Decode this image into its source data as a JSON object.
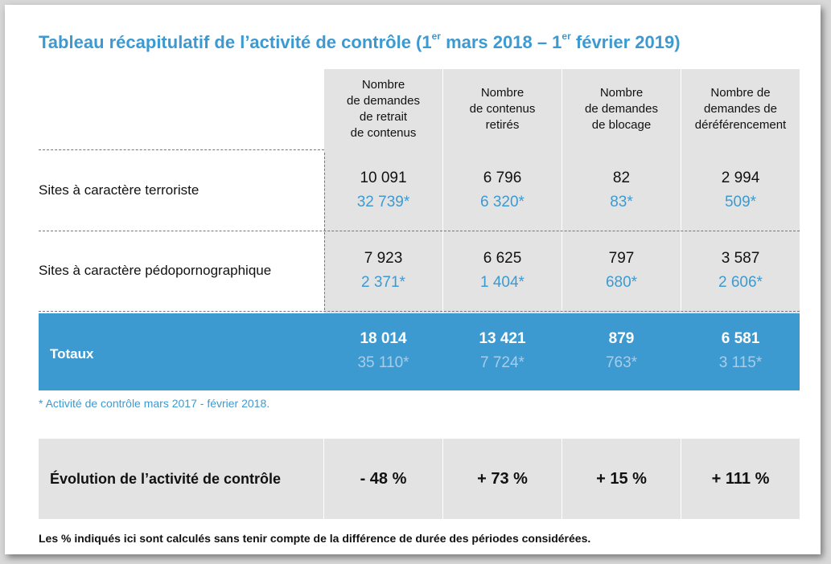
{
  "title": {
    "part1": "Tableau récapitulatif de l’activité de contrôle (1",
    "sup1": "er",
    "part2": " mars 2018 – 1",
    "sup2": "er",
    "part3": " février 2019)"
  },
  "columns": [
    {
      "label_lines": [
        "Nombre",
        "de demandes",
        "de retrait",
        "de contenus"
      ]
    },
    {
      "label_lines": [
        "Nombre",
        "de contenus",
        "retirés"
      ]
    },
    {
      "label_lines": [
        "Nombre",
        "de demandes",
        "de blocage"
      ]
    },
    {
      "label_lines": [
        "Nombre de",
        "demandes de",
        "déréférencement"
      ]
    }
  ],
  "rows": [
    {
      "label": "Sites à caractère terroriste",
      "values": [
        {
          "current": "10 091",
          "previous": "32 739*"
        },
        {
          "current": "6 796",
          "previous": "6 320*"
        },
        {
          "current": "82",
          "previous": "83*"
        },
        {
          "current": "2 994",
          "previous": "509*"
        }
      ]
    },
    {
      "label": "Sites à caractère pédopornographique",
      "values": [
        {
          "current": "7 923",
          "previous": "2 371*"
        },
        {
          "current": "6 625",
          "previous": "1 404*"
        },
        {
          "current": "797",
          "previous": "680*"
        },
        {
          "current": "3 587",
          "previous": "2 606*"
        }
      ]
    }
  ],
  "totals": {
    "label": "Totaux",
    "values": [
      {
        "current": "18 014",
        "previous": "35 110*"
      },
      {
        "current": "13 421",
        "previous": "7 724*"
      },
      {
        "current": "879",
        "previous": "763*"
      },
      {
        "current": "6 581",
        "previous": "3 115*"
      }
    ]
  },
  "note": "* Activité de contrôle mars 2017 - février 2018.",
  "evolution": {
    "label": "Évolution de l’activité de contrôle",
    "values": [
      "- 48 %",
      "+ 73 %",
      "+ 15 %",
      "+ 111 %"
    ]
  },
  "footnote": "Les % indiqués ici sont calculés sans tenir compte de la différence de durée des périodes considérées.",
  "colors": {
    "accent": "#3d9ad1",
    "grey": "#e3e3e3"
  }
}
